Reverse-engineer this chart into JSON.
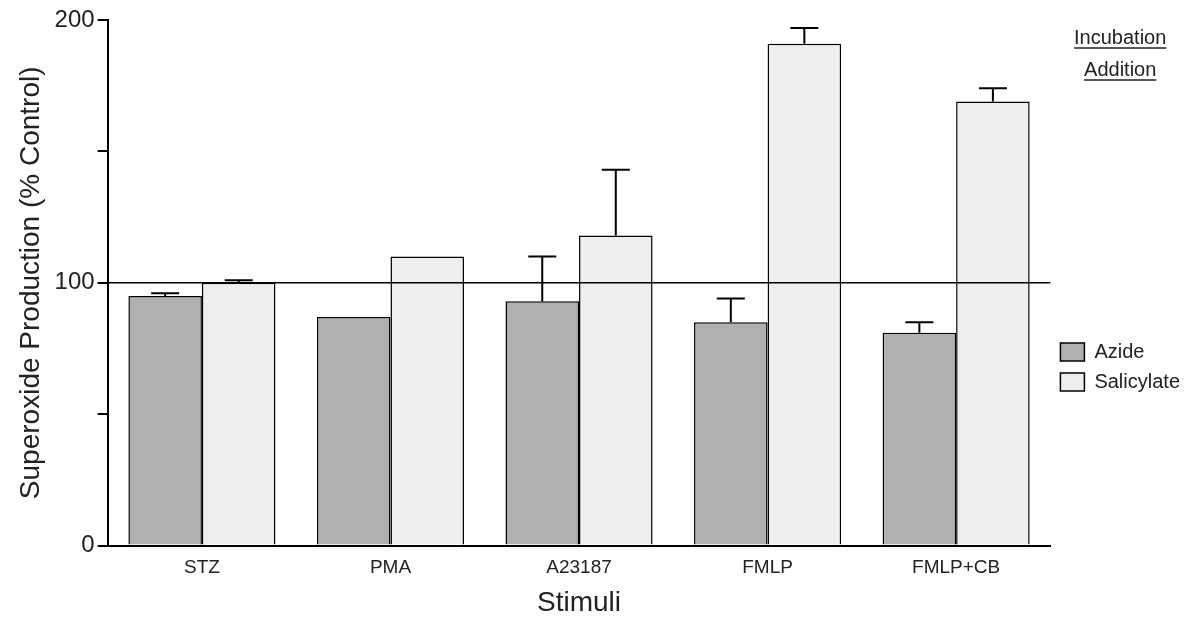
{
  "chart_data": {
    "type": "bar",
    "xlabel": "Stimuli",
    "ylabel": "Superoxide Production (% Control)",
    "legend_title": "Incubation Addition",
    "legend": "right",
    "grid": false,
    "categories": [
      "STZ",
      "PMA",
      "A23187",
      "FMLP",
      "FMLP+CB"
    ],
    "ylim": [
      0,
      200
    ],
    "yticks": [
      0,
      {
        "value": 50,
        "label": null
      },
      100,
      {
        "value": 150,
        "label": null
      },
      200
    ],
    "series": [
      {
        "name": "Azide",
        "color": "#b0b0b0",
        "values": [
          95,
          87,
          93,
          85,
          81
        ],
        "errors": [
          [
            95,
            96
          ],
          null,
          [
            93,
            110
          ],
          [
            85,
            94
          ],
          [
            81,
            85
          ]
        ]
      },
      {
        "name": "Salicylate",
        "color": "#eeeeee",
        "values": [
          100,
          110,
          118,
          191,
          169
        ],
        "errors": [
          [
            100,
            101
          ],
          null,
          [
            118,
            143
          ],
          [
            191,
            197
          ],
          [
            169,
            174
          ]
        ]
      }
    ],
    "ref_lines": [
      {
        "axis": "y",
        "value": 100
      }
    ]
  }
}
